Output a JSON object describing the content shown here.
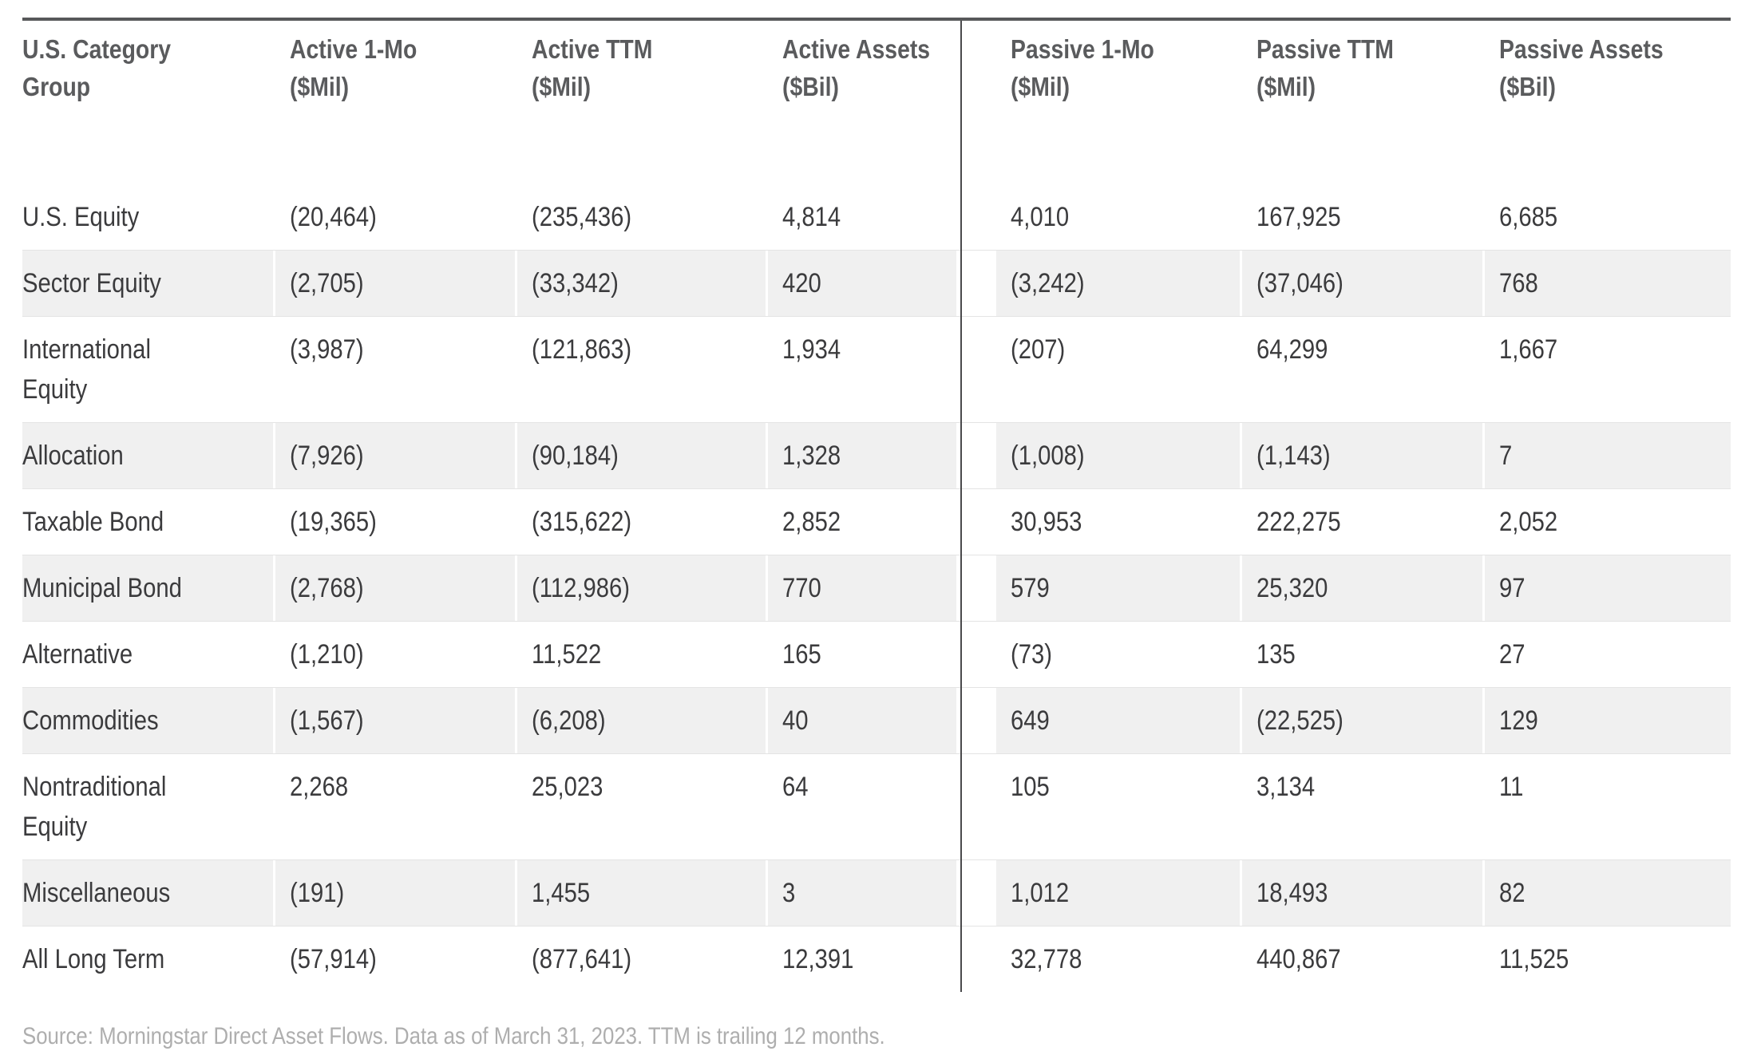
{
  "chart_data": {
    "type": "table",
    "title": "",
    "negatives_in_parentheses": true,
    "columns": [
      {
        "title": "U.S. Category Group",
        "unit": ""
      },
      {
        "title": "Active 1-Mo",
        "unit": "($Mil)"
      },
      {
        "title": "Active TTM",
        "unit": "($Mil)"
      },
      {
        "title": "Active Assets",
        "unit": "($Bil)"
      },
      {
        "title": "Passive 1-Mo",
        "unit": "($Mil)"
      },
      {
        "title": "Passive TTM",
        "unit": "($Mil)"
      },
      {
        "title": "Passive Assets",
        "unit": "($Bil)"
      }
    ],
    "rows": [
      {
        "category": "U.S. Equity",
        "values": [
          "(20,464)",
          "(235,436)",
          "4,814",
          "4,010",
          "167,925",
          "6,685"
        ]
      },
      {
        "category": "Sector Equity",
        "values": [
          "(2,705)",
          "(33,342)",
          "420",
          "(3,242)",
          "(37,046)",
          "768"
        ]
      },
      {
        "category": "International Equity",
        "values": [
          "(3,987)",
          "(121,863)",
          "1,934",
          "(207)",
          "64,299",
          "1,667"
        ]
      },
      {
        "category": "Allocation",
        "values": [
          "(7,926)",
          "(90,184)",
          "1,328",
          "(1,008)",
          "(1,143)",
          "7"
        ]
      },
      {
        "category": "Taxable Bond",
        "values": [
          "(19,365)",
          "(315,622)",
          "2,852",
          "30,953",
          "222,275",
          "2,052"
        ]
      },
      {
        "category": "Municipal Bond",
        "values": [
          "(2,768)",
          "(112,986)",
          "770",
          "579",
          "25,320",
          "97"
        ]
      },
      {
        "category": "Alternative",
        "values": [
          "(1,210)",
          "11,522",
          "165",
          "(73)",
          "135",
          "27"
        ]
      },
      {
        "category": "Commodities",
        "values": [
          "(1,567)",
          "(6,208)",
          "40",
          "649",
          "(22,525)",
          "129"
        ]
      },
      {
        "category": "Nontraditional Equity",
        "values": [
          "2,268",
          "25,023",
          "64",
          "105",
          "3,134",
          "11"
        ]
      },
      {
        "category": "Miscellaneous",
        "values": [
          "(191)",
          "1,455",
          "3",
          "1,012",
          "18,493",
          "82"
        ]
      },
      {
        "category": "All Long Term",
        "values": [
          "(57,914)",
          "(877,641)",
          "12,391",
          "32,778",
          "440,867",
          "11,525"
        ]
      }
    ],
    "source_note": "Source: Morningstar Direct Asset Flows. Data as of March 31, 2023. TTM is trailing 12 months."
  },
  "colors": {
    "top_rule": "#57585a",
    "divider": "#4a4a4c",
    "header_text": "#5a5b5d",
    "body_text": "#3b3b3d",
    "row_stripe": "#f0f0f0",
    "row_hairline": "#e4e4e4",
    "footer_text": "#aeaeae"
  }
}
